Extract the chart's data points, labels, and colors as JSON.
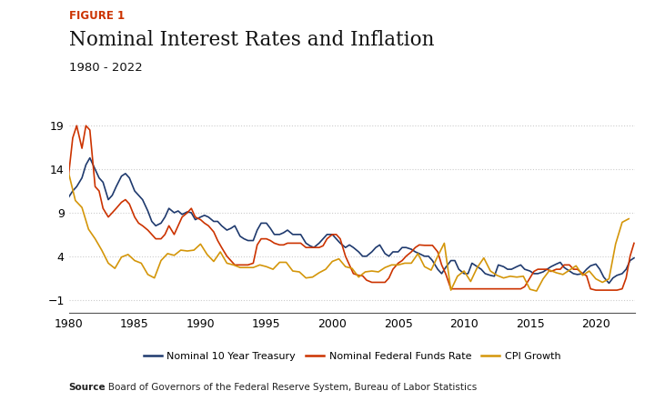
{
  "title_label": "FIGURE 1",
  "title": "Nominal Interest Rates and Inflation",
  "subtitle": "1980 - 2022",
  "source_bold": "Source",
  "source_rest": ": Board of Governors of the Federal Reserve System, Bureau of Labor Statistics",
  "background_color": "#ffffff",
  "plot_bg_color": "#ffffff",
  "grid_color": "#cccccc",
  "colors": {
    "treasury": "#1f3a6e",
    "fed_funds": "#cc3300",
    "cpi": "#d4960a"
  },
  "legend": [
    "Nominal 10 Year Treasury",
    "Nominal Federal Funds Rate",
    "CPI Growth"
  ],
  "ylim": [
    -2.5,
    21
  ],
  "yticks": [
    -1,
    4,
    9,
    14,
    19
  ],
  "xlim": [
    1980,
    2023
  ],
  "xticks": [
    1980,
    1985,
    1990,
    1995,
    2000,
    2005,
    2010,
    2015,
    2020
  ],
  "treasury_x": [
    1980,
    1980.3,
    1980.6,
    1981,
    1981.3,
    1981.6,
    1982,
    1982.3,
    1982.6,
    1983,
    1983.3,
    1983.6,
    1984,
    1984.3,
    1984.6,
    1985,
    1985.3,
    1985.6,
    1986,
    1986.3,
    1986.6,
    1987,
    1987.3,
    1987.6,
    1988,
    1988.3,
    1988.6,
    1989,
    1989.3,
    1989.6,
    1990,
    1990.3,
    1990.6,
    1991,
    1991.3,
    1991.6,
    1992,
    1992.3,
    1992.6,
    1993,
    1993.3,
    1993.6,
    1994,
    1994.3,
    1994.6,
    1995,
    1995.3,
    1995.6,
    1996,
    1996.3,
    1996.6,
    1997,
    1997.3,
    1997.6,
    1998,
    1998.3,
    1998.6,
    1999,
    1999.3,
    1999.6,
    2000,
    2000.3,
    2000.6,
    2001,
    2001.3,
    2001.6,
    2002,
    2002.3,
    2002.6,
    2003,
    2003.3,
    2003.6,
    2004,
    2004.3,
    2004.6,
    2005,
    2005.3,
    2005.6,
    2006,
    2006.3,
    2006.6,
    2007,
    2007.3,
    2007.6,
    2008,
    2008.3,
    2008.6,
    2009,
    2009.3,
    2009.6,
    2010,
    2010.3,
    2010.6,
    2011,
    2011.3,
    2011.6,
    2012,
    2012.3,
    2012.6,
    2013,
    2013.3,
    2013.6,
    2014,
    2014.3,
    2014.6,
    2015,
    2015.3,
    2015.6,
    2016,
    2016.3,
    2016.6,
    2017,
    2017.3,
    2017.6,
    2018,
    2018.3,
    2018.6,
    2019,
    2019.3,
    2019.6,
    2020,
    2020.3,
    2020.6,
    2021,
    2021.3,
    2021.6,
    2022,
    2022.3,
    2022.6,
    2022.9
  ],
  "treasury_y": [
    10.8,
    11.5,
    12.0,
    13.0,
    14.5,
    15.3,
    14.0,
    13.0,
    12.5,
    10.5,
    11.0,
    12.0,
    13.2,
    13.5,
    13.0,
    11.5,
    11.0,
    10.5,
    9.2,
    8.0,
    7.5,
    7.8,
    8.5,
    9.5,
    9.0,
    9.2,
    8.8,
    9.1,
    9.0,
    8.2,
    8.5,
    8.7,
    8.5,
    8.0,
    8.0,
    7.5,
    7.0,
    7.2,
    7.5,
    6.3,
    6.0,
    5.8,
    5.8,
    7.0,
    7.8,
    7.8,
    7.2,
    6.5,
    6.5,
    6.7,
    7.0,
    6.5,
    6.5,
    6.5,
    5.5,
    5.2,
    5.0,
    5.5,
    6.0,
    6.5,
    6.5,
    6.0,
    5.5,
    5.0,
    5.3,
    5.0,
    4.5,
    4.0,
    4.0,
    4.5,
    5.0,
    5.3,
    4.3,
    4.0,
    4.5,
    4.5,
    5.0,
    5.0,
    4.8,
    4.5,
    4.3,
    4.0,
    4.0,
    3.5,
    2.5,
    2.0,
    2.7,
    3.5,
    3.5,
    2.5,
    2.0,
    2.0,
    3.2,
    2.8,
    2.5,
    2.0,
    1.8,
    1.7,
    3.0,
    2.8,
    2.5,
    2.5,
    2.8,
    3.0,
    2.5,
    2.3,
    2.0,
    2.0,
    2.2,
    2.5,
    2.8,
    3.1,
    3.3,
    2.7,
    2.3,
    2.0,
    1.9,
    2.0,
    2.5,
    2.9,
    3.1,
    2.5,
    1.6,
    0.9,
    1.5,
    1.8,
    2.0,
    2.5,
    3.5,
    3.8
  ],
  "fedfunds_x": [
    1980,
    1980.3,
    1980.6,
    1981,
    1981.3,
    1981.6,
    1982,
    1982.3,
    1982.6,
    1983,
    1983.3,
    1983.6,
    1984,
    1984.3,
    1984.6,
    1985,
    1985.3,
    1985.6,
    1986,
    1986.3,
    1986.6,
    1987,
    1987.3,
    1987.6,
    1988,
    1988.3,
    1988.6,
    1989,
    1989.3,
    1989.6,
    1990,
    1990.3,
    1990.6,
    1991,
    1991.3,
    1991.6,
    1992,
    1992.3,
    1992.6,
    1993,
    1993.3,
    1993.6,
    1994,
    1994.3,
    1994.6,
    1995,
    1995.3,
    1995.6,
    1996,
    1996.3,
    1996.6,
    1997,
    1997.3,
    1997.6,
    1998,
    1998.3,
    1998.6,
    1999,
    1999.3,
    1999.6,
    2000,
    2000.3,
    2000.6,
    2001,
    2001.3,
    2001.6,
    2002,
    2002.3,
    2002.6,
    2003,
    2003.3,
    2003.6,
    2004,
    2004.3,
    2004.6,
    2005,
    2005.3,
    2005.6,
    2006,
    2006.3,
    2006.6,
    2007,
    2007.3,
    2007.6,
    2008,
    2008.3,
    2008.6,
    2009,
    2009.3,
    2009.6,
    2010,
    2010.3,
    2010.6,
    2011,
    2011.3,
    2011.6,
    2012,
    2012.3,
    2012.6,
    2013,
    2013.3,
    2013.6,
    2014,
    2014.3,
    2014.6,
    2015,
    2015.3,
    2015.6,
    2016,
    2016.3,
    2016.6,
    2017,
    2017.3,
    2017.6,
    2018,
    2018.3,
    2018.6,
    2019,
    2019.3,
    2019.6,
    2020,
    2020.3,
    2020.6,
    2021,
    2021.3,
    2021.6,
    2022,
    2022.3,
    2022.6,
    2022.9
  ],
  "fedfunds_y": [
    13.5,
    17.6,
    19.0,
    16.4,
    19.0,
    18.5,
    12.0,
    11.5,
    9.5,
    8.5,
    9.0,
    9.5,
    10.2,
    10.5,
    10.0,
    8.5,
    7.8,
    7.5,
    7.0,
    6.5,
    6.0,
    6.0,
    6.5,
    7.5,
    6.5,
    7.5,
    8.5,
    9.0,
    9.5,
    8.5,
    8.2,
    7.8,
    7.5,
    6.8,
    5.8,
    5.0,
    4.0,
    3.5,
    3.0,
    3.0,
    3.0,
    3.0,
    3.2,
    5.3,
    6.0,
    6.0,
    5.8,
    5.5,
    5.3,
    5.3,
    5.5,
    5.5,
    5.5,
    5.5,
    5.0,
    5.0,
    5.0,
    5.0,
    5.2,
    6.0,
    6.5,
    6.5,
    6.0,
    4.0,
    3.0,
    2.0,
    1.8,
    1.75,
    1.25,
    1.0,
    1.0,
    1.0,
    1.0,
    1.5,
    2.5,
    3.2,
    3.5,
    4.0,
    4.5,
    5.0,
    5.3,
    5.25,
    5.25,
    5.25,
    4.5,
    3.0,
    2.0,
    0.25,
    0.25,
    0.25,
    0.25,
    0.25,
    0.25,
    0.25,
    0.25,
    0.25,
    0.25,
    0.25,
    0.25,
    0.25,
    0.25,
    0.25,
    0.25,
    0.25,
    0.5,
    1.5,
    2.25,
    2.5,
    2.5,
    2.5,
    2.25,
    2.5,
    2.5,
    3.0,
    3.0,
    2.5,
    2.5,
    2.0,
    1.75,
    0.25,
    0.1,
    0.1,
    0.1,
    0.1,
    0.1,
    0.1,
    0.25,
    1.5,
    4.0,
    5.5
  ],
  "cpi_x": [
    1980,
    1980.5,
    1981,
    1981.5,
    1982,
    1982.5,
    1983,
    1983.5,
    1984,
    1984.5,
    1985,
    1985.5,
    1986,
    1986.5,
    1987,
    1987.5,
    1988,
    1988.5,
    1989,
    1989.5,
    1990,
    1990.5,
    1991,
    1991.5,
    1992,
    1992.5,
    1993,
    1993.5,
    1994,
    1994.5,
    1995,
    1995.5,
    1996,
    1996.5,
    1997,
    1997.5,
    1998,
    1998.5,
    1999,
    1999.5,
    2000,
    2000.5,
    2001,
    2001.5,
    2002,
    2002.5,
    2003,
    2003.5,
    2004,
    2004.5,
    2005,
    2005.5,
    2006,
    2006.5,
    2007,
    2007.5,
    2008,
    2008.5,
    2009,
    2009.5,
    2010,
    2010.5,
    2011,
    2011.5,
    2012,
    2012.5,
    2013,
    2013.5,
    2014,
    2014.5,
    2015,
    2015.5,
    2016,
    2016.5,
    2017,
    2017.5,
    2018,
    2018.5,
    2019,
    2019.5,
    2020,
    2020.5,
    2021,
    2021.5,
    2022,
    2022.5
  ],
  "cpi_y": [
    13.5,
    10.4,
    9.6,
    7.1,
    6.0,
    4.7,
    3.2,
    2.6,
    3.9,
    4.2,
    3.5,
    3.2,
    1.9,
    1.5,
    3.5,
    4.3,
    4.1,
    4.7,
    4.6,
    4.7,
    5.4,
    4.2,
    3.4,
    4.5,
    3.2,
    3.0,
    2.7,
    2.7,
    2.7,
    3.0,
    2.8,
    2.5,
    3.3,
    3.3,
    2.3,
    2.2,
    1.5,
    1.6,
    2.1,
    2.5,
    3.4,
    3.7,
    2.8,
    2.6,
    1.6,
    2.2,
    2.3,
    2.2,
    2.7,
    3.0,
    3.0,
    3.2,
    3.2,
    4.3,
    2.8,
    2.4,
    4.0,
    5.5,
    0.1,
    1.7,
    2.3,
    1.1,
    2.7,
    3.8,
    2.3,
    1.8,
    1.5,
    1.7,
    1.6,
    1.7,
    0.2,
    0.0,
    1.4,
    2.4,
    2.1,
    1.9,
    2.4,
    2.9,
    1.8,
    2.3,
    1.4,
    1.0,
    1.4,
    5.4,
    7.9,
    8.3
  ]
}
